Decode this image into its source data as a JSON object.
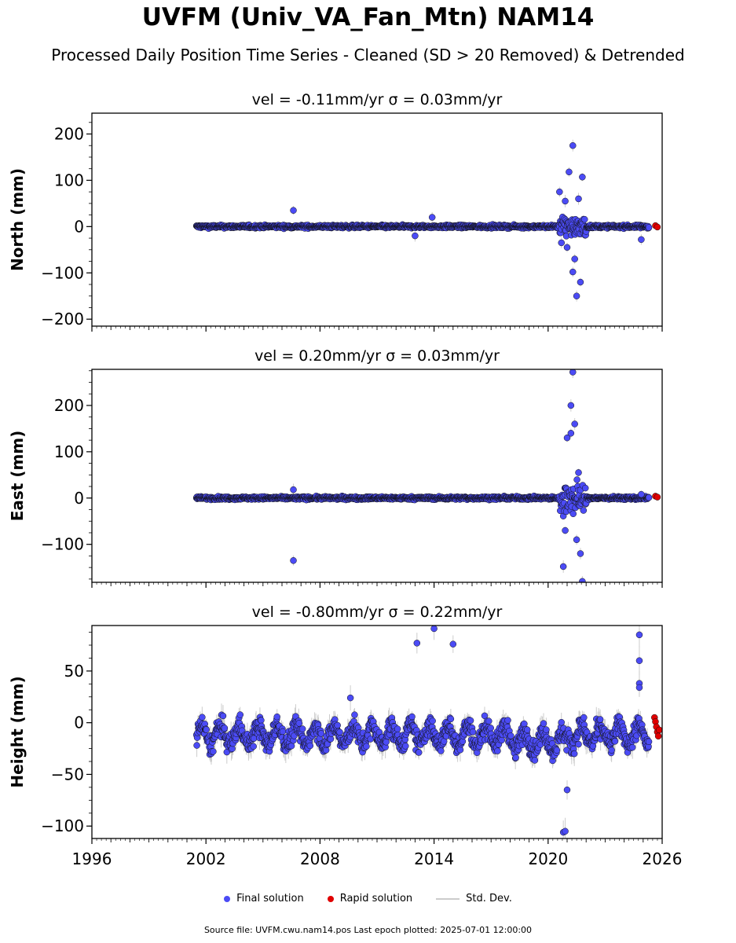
{
  "title": "UVFM (Univ_VA_Fan_Mtn) NAM14",
  "subtitle": "Processed Daily Position Time Series - Cleaned (SD > 20 Removed) & Detrended",
  "legend": {
    "final": "Final solution",
    "rapid": "Rapid solution",
    "std": "Std. Dev."
  },
  "footer": "Source file: UVFM.cwu.nam14.pos  Last epoch plotted: 2025-07-01 12:00:00",
  "colors": {
    "final": "#4b4bf5",
    "rapid": "#e00000",
    "std": "#cccccc"
  },
  "chart_data": [
    {
      "type": "scatter",
      "title": "vel = -0.11mm/yr   σ = 0.03mm/yr",
      "ylabel": "North (mm)",
      "xlim": [
        1996,
        2026
      ],
      "ylim": [
        -215,
        245
      ],
      "yticks": [
        -200,
        -100,
        0,
        100,
        200
      ],
      "xticks": [
        1996,
        2002,
        2008,
        2014,
        2020,
        2026
      ],
      "outliers": [
        [
          2006.6,
          35
        ],
        [
          2013.0,
          -20
        ],
        [
          2013.9,
          20
        ],
        [
          2020.6,
          75
        ],
        [
          2020.9,
          55
        ],
        [
          2021.1,
          118
        ],
        [
          2021.3,
          175
        ],
        [
          2021.6,
          60
        ],
        [
          2021.8,
          107
        ],
        [
          2021.7,
          -120
        ],
        [
          2021.5,
          -150
        ],
        [
          2021.3,
          -98
        ],
        [
          2021.4,
          -70
        ],
        [
          2021.0,
          -45
        ],
        [
          2020.7,
          -35
        ],
        [
          2024.9,
          -28
        ]
      ],
      "rapid": [
        [
          2025.4,
          2
        ],
        [
          2025.5,
          -1
        ]
      ]
    },
    {
      "type": "scatter",
      "title": "vel = 0.20mm/yr   σ = 0.03mm/yr",
      "ylabel": "East (mm)",
      "xlim": [
        1996,
        2026
      ],
      "ylim": [
        -182,
        278
      ],
      "yticks": [
        -100,
        0,
        100,
        200
      ],
      "xticks": [
        1996,
        2002,
        2008,
        2014,
        2020,
        2026
      ],
      "outliers": [
        [
          2006.6,
          18
        ],
        [
          2006.6,
          -135
        ],
        [
          2020.8,
          -148
        ],
        [
          2021.0,
          130
        ],
        [
          2021.2,
          200
        ],
        [
          2021.3,
          272
        ],
        [
          2021.4,
          160
        ],
        [
          2021.2,
          140
        ],
        [
          2021.5,
          -90
        ],
        [
          2021.8,
          -180
        ],
        [
          2021.7,
          -120
        ],
        [
          2021.6,
          55
        ],
        [
          2020.9,
          -70
        ],
        [
          2024.9,
          8
        ]
      ],
      "rapid": [
        [
          2025.4,
          4
        ],
        [
          2025.5,
          2
        ]
      ]
    },
    {
      "type": "scatter",
      "title": "vel = -0.80mm/yr   σ = 0.22mm/yr",
      "ylabel": "Height (mm)",
      "xlim": [
        1996,
        2026
      ],
      "ylim": [
        -112,
        94
      ],
      "yticks": [
        -100,
        -50,
        0,
        50
      ],
      "xticks": [
        1996,
        2002,
        2008,
        2014,
        2020,
        2026
      ],
      "outliers": [
        [
          2013.1,
          77
        ],
        [
          2014.0,
          91
        ],
        [
          2015.0,
          76
        ],
        [
          2024.8,
          85
        ],
        [
          2024.8,
          60
        ],
        [
          2024.8,
          38
        ],
        [
          2024.8,
          34
        ],
        [
          2020.8,
          -106
        ],
        [
          2020.9,
          -105
        ],
        [
          2021.0,
          -65
        ],
        [
          2009.6,
          24
        ]
      ],
      "rapid": [
        [
          2025.35,
          5
        ],
        [
          2025.4,
          1
        ],
        [
          2025.45,
          -4
        ],
        [
          2025.5,
          -9
        ],
        [
          2025.55,
          -13
        ],
        [
          2025.6,
          -7
        ]
      ]
    }
  ]
}
